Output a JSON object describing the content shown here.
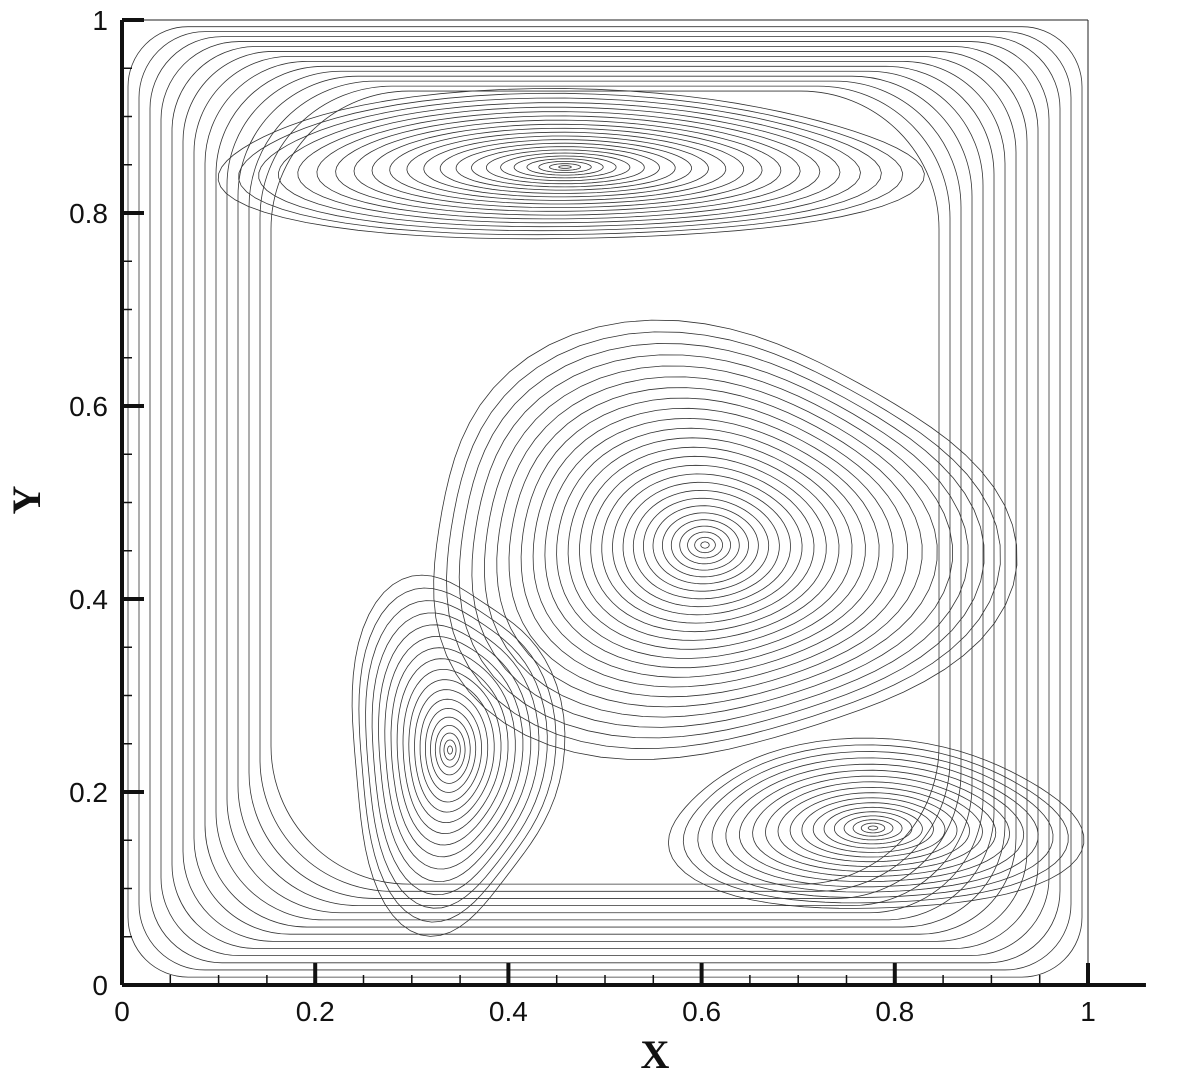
{
  "chart_data": {
    "type": "streamline",
    "xlabel": "X",
    "ylabel": "Y",
    "xlim": [
      0,
      1.06
    ],
    "ylim": [
      0,
      1
    ],
    "xticks": [
      0,
      0.2,
      0.4,
      0.6,
      0.8,
      1
    ],
    "yticks": [
      0,
      0.2,
      0.4,
      0.6,
      0.8,
      1
    ]
  }
}
